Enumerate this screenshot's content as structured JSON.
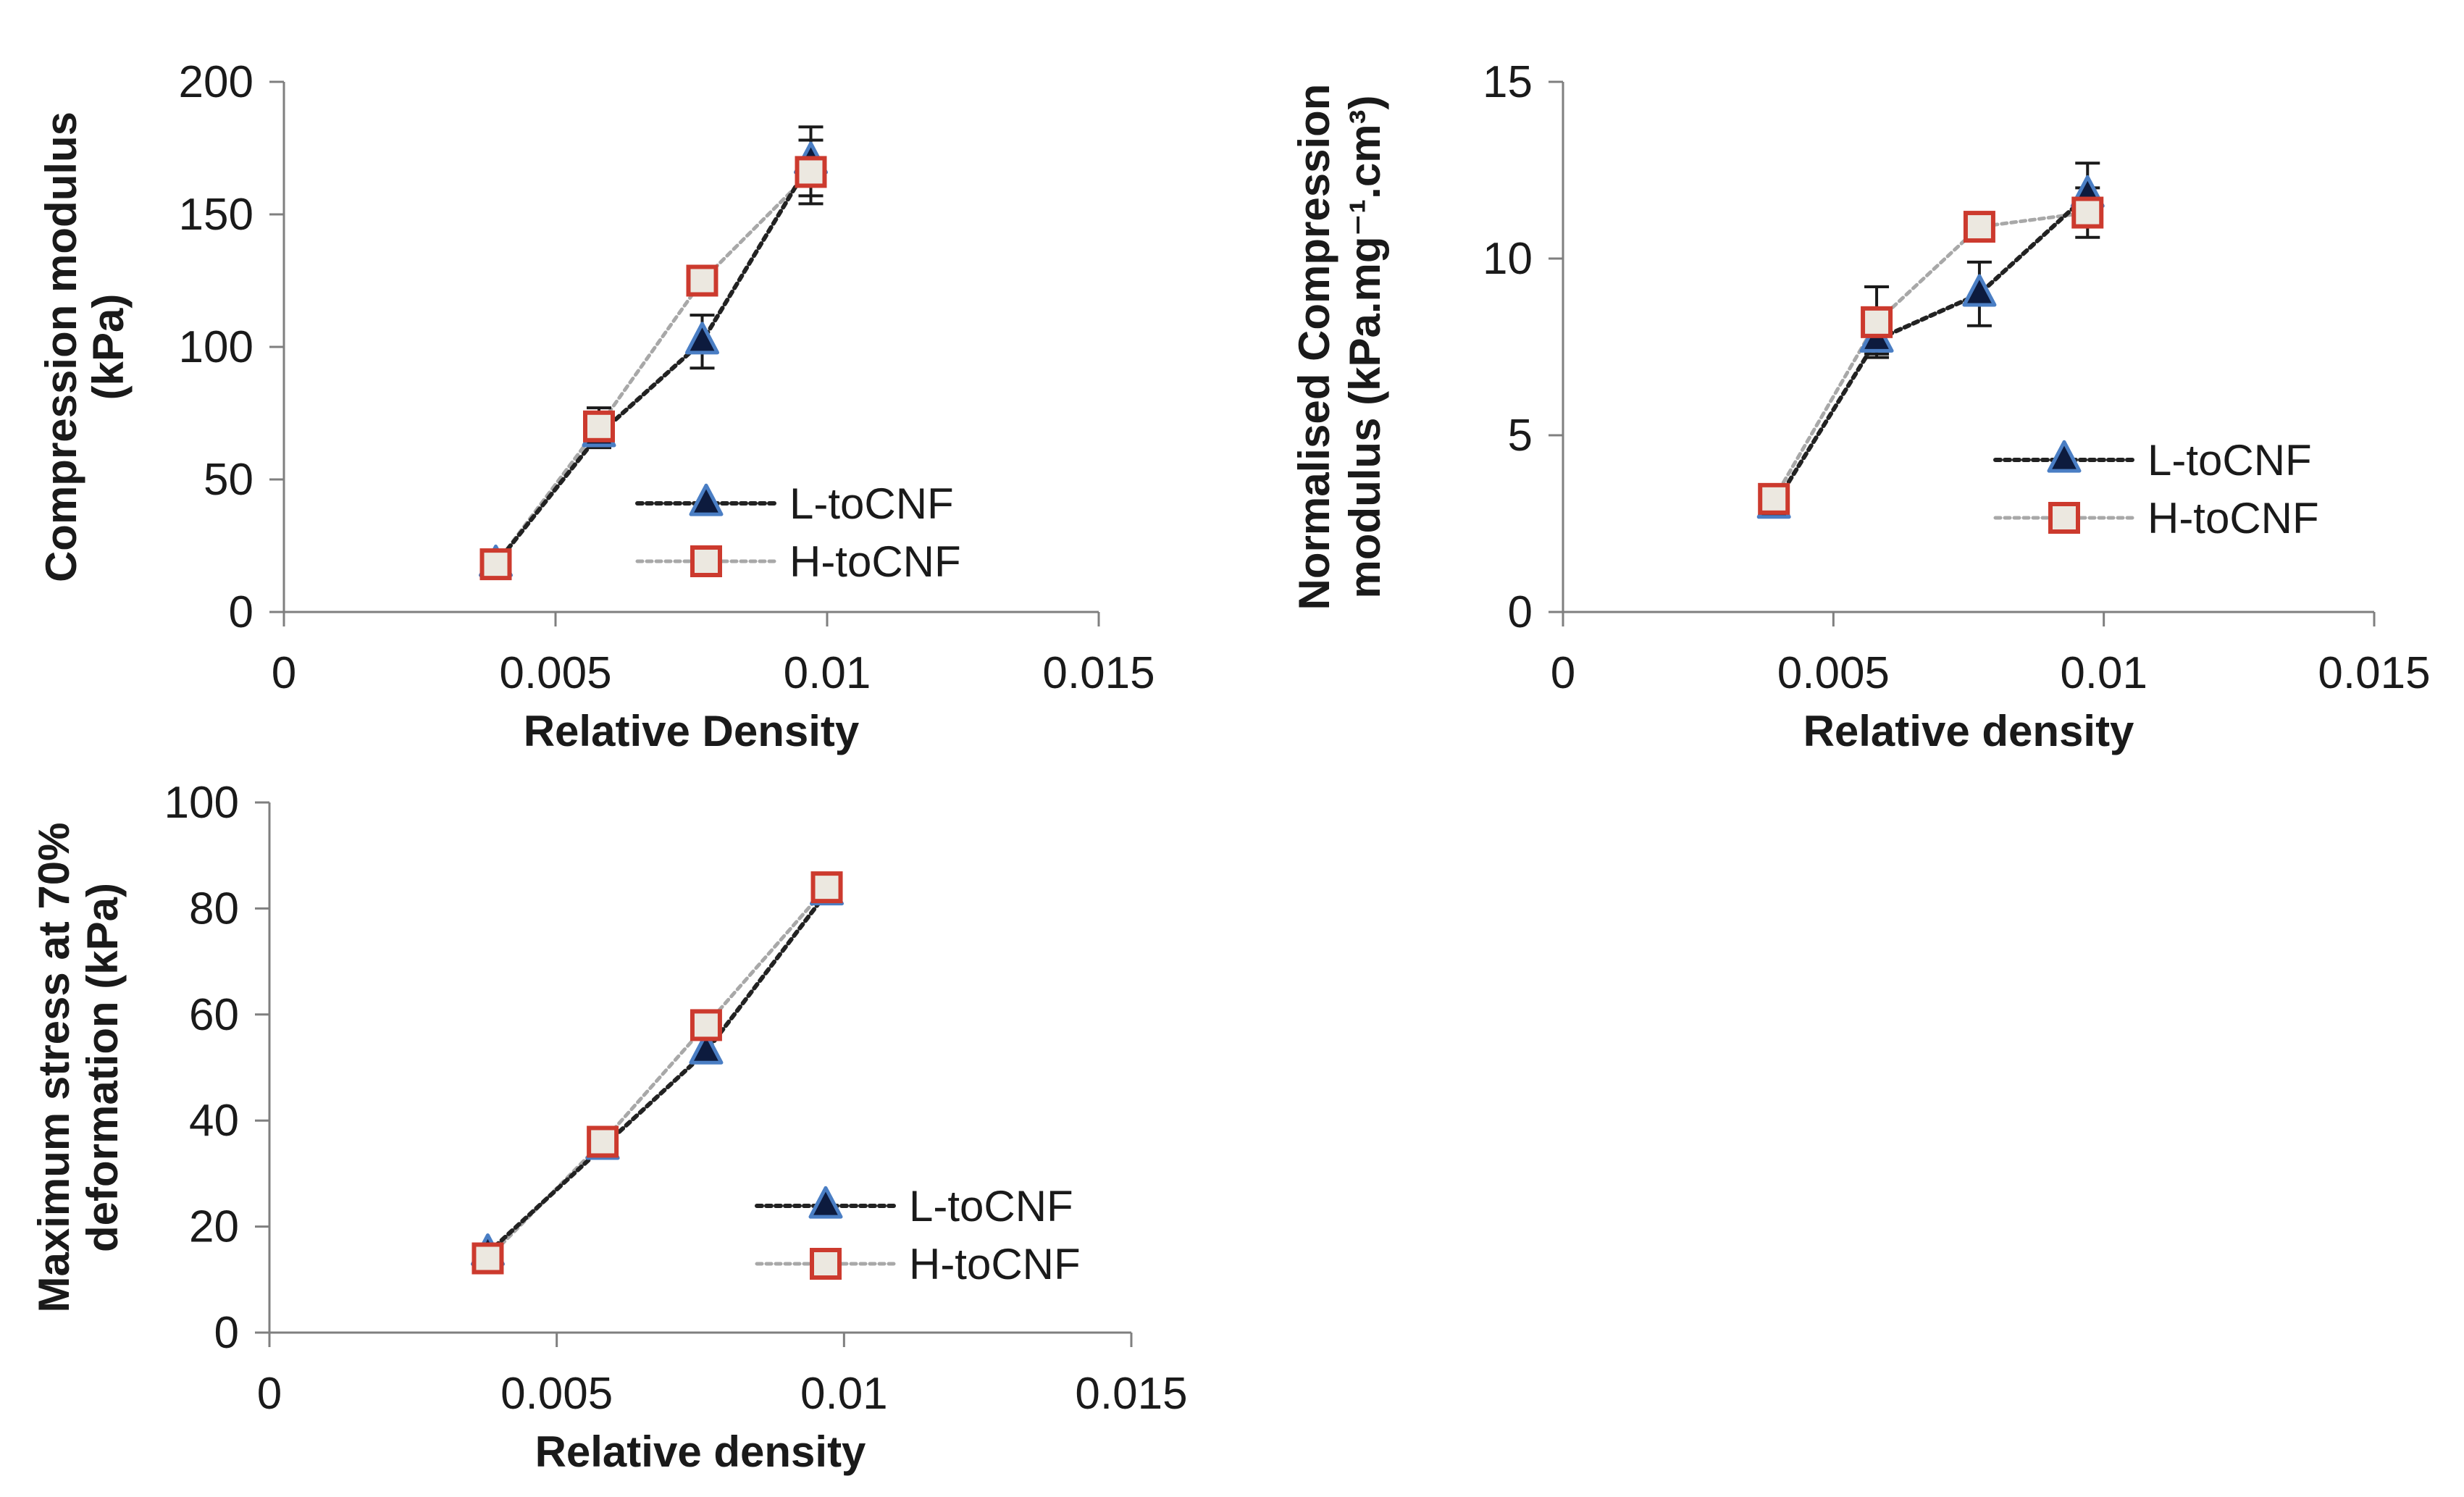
{
  "colors": {
    "l_marker_fill": "#0d1b3e",
    "l_marker_stroke": "#4a7ec4",
    "h_marker_fill": "#ece8e0",
    "h_marker_stroke": "#cc3a2e",
    "l_line": "#222222",
    "h_line": "#a8a8a8",
    "error_bar": "#1a1a1a"
  },
  "chart_data": [
    {
      "type": "line",
      "title": "",
      "xlabel": "Relative Density",
      "ylabel": "Compression modulus (kPa)",
      "ylabel_lines": [
        "Compression modulus",
        "(kPa)"
      ],
      "xlim": [
        0,
        0.015
      ],
      "ylim": [
        0,
        200
      ],
      "xticks": [
        0,
        0.005,
        0.01,
        0.015
      ],
      "xtick_labels": [
        "0",
        "0.005",
        "0.01",
        "0.015"
      ],
      "yticks": [
        0,
        50,
        100,
        150,
        200
      ],
      "ytick_labels": [
        "0",
        "50",
        "100",
        "150",
        "200"
      ],
      "legend_position": "bottom-right",
      "series": [
        {
          "name": "L-toCNF",
          "x": [
            0.0039,
            0.0058,
            0.0077,
            0.0097
          ],
          "y": [
            18,
            67,
            102,
            170
          ],
          "err": [
            0,
            5,
            10,
            13
          ]
        },
        {
          "name": "H-toCNF",
          "x": [
            0.0039,
            0.0058,
            0.0077,
            0.0097
          ],
          "y": [
            18,
            70,
            125,
            166
          ],
          "err": [
            0,
            7,
            0,
            12
          ]
        }
      ]
    },
    {
      "type": "line",
      "title": "",
      "xlabel": "Relative density",
      "ylabel": "Normalised Compression modulus (kPa.mg-1.cm3)",
      "ylabel_lines": [
        "Normalised Compression",
        "modulus (kPa.mg⁻¹.cm³)"
      ],
      "xlim": [
        0,
        0.015
      ],
      "ylim": [
        0,
        15
      ],
      "xticks": [
        0,
        0.005,
        0.01,
        0.015
      ],
      "xtick_labels": [
        "0",
        "0.005",
        "0.01",
        "0.015"
      ],
      "yticks": [
        0,
        5,
        10,
        15
      ],
      "ytick_labels": [
        "0",
        "5",
        "10",
        "15"
      ],
      "legend_position": "right",
      "series": [
        {
          "name": "L-toCNF",
          "x": [
            0.0039,
            0.0058,
            0.0077,
            0.0097
          ],
          "y": [
            3.0,
            7.7,
            9.0,
            11.8
          ],
          "err": [
            0.3,
            0.4,
            0.9,
            0.9
          ]
        },
        {
          "name": "H-toCNF",
          "x": [
            0.0039,
            0.0058,
            0.0077,
            0.0097
          ],
          "y": [
            3.2,
            8.2,
            10.9,
            11.3
          ],
          "err": [
            0,
            1.0,
            0,
            0.7
          ]
        }
      ]
    },
    {
      "type": "line",
      "title": "",
      "xlabel": "Relative density",
      "ylabel": "Maximum stress at 70% deformation (kPa)",
      "ylabel_lines": [
        "Maximum stress at 70%",
        "deformation (kPa)"
      ],
      "xlim": [
        0,
        0.015
      ],
      "ylim": [
        0,
        100
      ],
      "xticks": [
        0,
        0.005,
        0.01,
        0.015
      ],
      "xtick_labels": [
        "0",
        "0.005",
        "0.01",
        "0.015"
      ],
      "yticks": [
        0,
        20,
        40,
        60,
        80,
        100
      ],
      "ytick_labels": [
        "0",
        "20",
        "40",
        "60",
        "80",
        "100"
      ],
      "legend_position": "bottom-right",
      "series": [
        {
          "name": "L-toCNF",
          "x": [
            0.0038,
            0.0058,
            0.0076,
            0.0097
          ],
          "y": [
            15,
            35,
            53,
            83
          ],
          "err": [
            0,
            0,
            0,
            0
          ]
        },
        {
          "name": "H-toCNF",
          "x": [
            0.0038,
            0.0058,
            0.0076,
            0.0097
          ],
          "y": [
            14,
            36,
            58,
            84
          ],
          "err": [
            0,
            0,
            0,
            0
          ]
        }
      ]
    }
  ]
}
